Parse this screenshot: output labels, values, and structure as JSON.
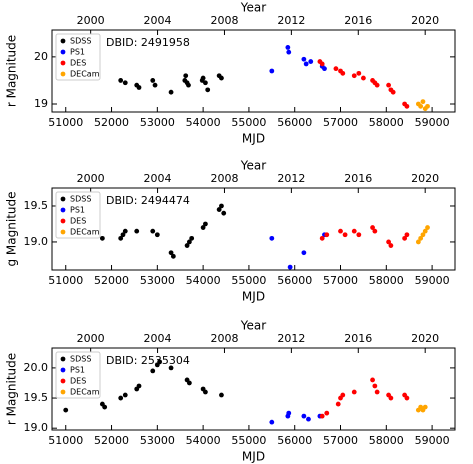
{
  "chart_data": [
    {
      "type": "scatter",
      "xlabel": "MJD",
      "x2label": "Year",
      "ylabel": "r Magnitude",
      "annotation": "DBID: 2491958",
      "legend": "upper left",
      "xlim": [
        50700,
        59500
      ],
      "xticks": [
        51000,
        52000,
        53000,
        54000,
        55000,
        56000,
        57000,
        58000,
        59000
      ],
      "x2ticks": [
        {
          "value": 51544,
          "label": "2000"
        },
        {
          "value": 53005,
          "label": "2004"
        },
        {
          "value": 54466,
          "label": "2008"
        },
        {
          "value": 55927,
          "label": "2012"
        },
        {
          "value": 57388,
          "label": "2016"
        },
        {
          "value": 58849,
          "label": "2020"
        }
      ],
      "ylim": [
        18.83,
        20.57
      ],
      "yticks": [
        19,
        20
      ],
      "series": [
        {
          "name": "SDSS",
          "color": "#000000",
          "x": [
            52200,
            52300,
            52550,
            52600,
            52900,
            52950,
            53300,
            53600,
            53620,
            53650,
            53680,
            53980,
            54000,
            54050,
            54100,
            54350,
            54400
          ],
          "values": [
            19.5,
            19.45,
            19.4,
            19.35,
            19.5,
            19.4,
            19.25,
            19.5,
            19.6,
            19.45,
            19.4,
            19.5,
            19.55,
            19.45,
            19.3,
            19.6,
            19.55
          ]
        },
        {
          "name": "PS1",
          "color": "#0000ff",
          "x": [
            55500,
            55850,
            55870,
            56200,
            56250,
            56350,
            56600,
            56650
          ],
          "values": [
            19.7,
            20.2,
            20.1,
            19.95,
            19.85,
            19.9,
            19.8,
            19.75
          ]
        },
        {
          "name": "DES",
          "color": "#ff0000",
          "x": [
            56550,
            56600,
            56900,
            57000,
            57050,
            57300,
            57400,
            57500,
            57700,
            57750,
            57800,
            58050,
            58100,
            58150,
            58400,
            58450
          ],
          "values": [
            19.9,
            19.85,
            19.75,
            19.7,
            19.65,
            19.6,
            19.65,
            19.55,
            19.5,
            19.45,
            19.4,
            19.4,
            19.3,
            19.25,
            19.0,
            18.95
          ]
        },
        {
          "name": "DECam",
          "color": "#ffa500",
          "x": [
            58700,
            58750,
            58800,
            58850,
            58900
          ],
          "values": [
            19.0,
            18.95,
            19.05,
            18.9,
            18.95
          ]
        }
      ]
    },
    {
      "type": "scatter",
      "xlabel": "MJD",
      "x2label": "Year",
      "ylabel": "g Magnitude",
      "annotation": "DBID: 2494474",
      "legend": "upper left",
      "xlim": [
        50700,
        59500
      ],
      "xticks": [
        51000,
        52000,
        53000,
        54000,
        55000,
        56000,
        57000,
        58000,
        59000
      ],
      "x2ticks": [
        {
          "value": 51544,
          "label": "2000"
        },
        {
          "value": 53005,
          "label": "2004"
        },
        {
          "value": 54466,
          "label": "2008"
        },
        {
          "value": 55927,
          "label": "2012"
        },
        {
          "value": 57388,
          "label": "2016"
        },
        {
          "value": 58849,
          "label": "2020"
        }
      ],
      "ylim": [
        18.61,
        19.75
      ],
      "yticks": [
        {
          "value": 19,
          "label": "19.0"
        },
        19.5
      ],
      "series": [
        {
          "name": "SDSS",
          "color": "#000000",
          "x": [
            51700,
            51800,
            52200,
            52250,
            52300,
            52550,
            52900,
            53000,
            53300,
            53350,
            53650,
            53700,
            53750,
            54000,
            54050,
            54350,
            54400,
            54450
          ],
          "values": [
            19.1,
            19.05,
            19.05,
            19.1,
            19.15,
            19.15,
            19.15,
            19.1,
            18.85,
            18.8,
            18.95,
            19.0,
            19.05,
            19.2,
            19.25,
            19.45,
            19.5,
            19.4
          ]
        },
        {
          "name": "PS1",
          "color": "#0000ff",
          "x": [
            55500,
            55900,
            56200,
            56650
          ],
          "values": [
            19.05,
            18.65,
            18.85,
            19.1
          ]
        },
        {
          "name": "DES",
          "color": "#ff0000",
          "x": [
            56600,
            56700,
            57000,
            57100,
            57300,
            57400,
            57700,
            57750,
            58050,
            58100,
            58400,
            58450
          ],
          "values": [
            19.05,
            19.1,
            19.15,
            19.1,
            19.15,
            19.1,
            19.2,
            19.15,
            19.0,
            18.95,
            19.05,
            19.1
          ]
        },
        {
          "name": "DECam",
          "color": "#ffa500",
          "x": [
            58700,
            58750,
            58800,
            58850,
            58900
          ],
          "values": [
            19.0,
            19.05,
            19.1,
            19.15,
            19.2
          ]
        }
      ]
    },
    {
      "type": "scatter",
      "xlabel": "MJD",
      "x2label": "Year",
      "ylabel": "r Magnitude",
      "annotation": "DBID: 2535304",
      "legend": "upper left",
      "xlim": [
        50700,
        59500
      ],
      "xticks": [
        51000,
        52000,
        53000,
        54000,
        55000,
        56000,
        57000,
        58000,
        59000
      ],
      "x2ticks": [
        {
          "value": 51544,
          "label": "2000"
        },
        {
          "value": 53005,
          "label": "2004"
        },
        {
          "value": 54466,
          "label": "2008"
        },
        {
          "value": 55927,
          "label": "2012"
        },
        {
          "value": 57388,
          "label": "2016"
        },
        {
          "value": 58849,
          "label": "2020"
        }
      ],
      "ylim": [
        18.97,
        20.33
      ],
      "yticks": [
        {
          "value": 19,
          "label": "19.0"
        },
        19.5,
        {
          "value": 20,
          "label": "20.0"
        }
      ],
      "series": [
        {
          "name": "SDSS",
          "color": "#000000",
          "x": [
            51000,
            51800,
            51850,
            52200,
            52300,
            52550,
            52600,
            52900,
            53000,
            53050,
            53300,
            53650,
            53700,
            54000,
            54050,
            54400
          ],
          "values": [
            19.3,
            19.4,
            19.35,
            19.5,
            19.55,
            19.65,
            19.7,
            19.95,
            20.05,
            20.1,
            20.0,
            19.8,
            19.75,
            19.65,
            19.6,
            19.55
          ]
        },
        {
          "name": "PS1",
          "color": "#0000ff",
          "x": [
            55500,
            55850,
            55870,
            56200,
            56300,
            56550
          ],
          "values": [
            19.1,
            19.2,
            19.25,
            19.2,
            19.15,
            19.2
          ]
        },
        {
          "name": "DES",
          "color": "#ff0000",
          "x": [
            56600,
            56700,
            56950,
            57000,
            57050,
            57300,
            57700,
            57750,
            57800,
            58050,
            58100,
            58400,
            58450
          ],
          "values": [
            19.2,
            19.25,
            19.4,
            19.5,
            19.55,
            19.6,
            19.8,
            19.7,
            19.6,
            19.55,
            19.5,
            19.55,
            19.5
          ]
        },
        {
          "name": "DECam",
          "color": "#ffa500",
          "x": [
            58700,
            58750,
            58800,
            58850
          ],
          "values": [
            19.3,
            19.35,
            19.3,
            19.35
          ]
        }
      ]
    }
  ]
}
